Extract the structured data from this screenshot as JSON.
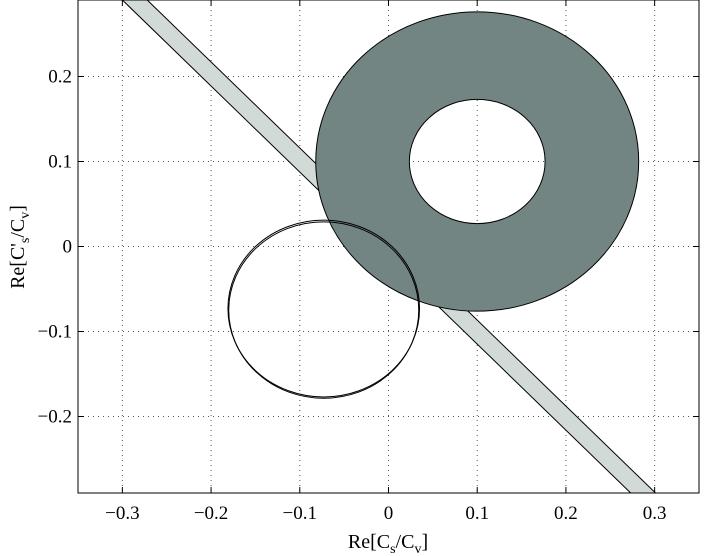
{
  "chart_data": {
    "type": "region-plot",
    "title": "",
    "xlabel": {
      "prefix": "Re[C",
      "sub1": "s",
      "mid": "/C",
      "sub2": "v",
      "suffix": "]"
    },
    "ylabel": {
      "prefix": "Re[C",
      "prime": "'",
      "sub1": "s",
      "mid": "/C",
      "sub2": "v",
      "suffix": "]"
    },
    "xlim": [
      -0.35,
      0.35
    ],
    "ylim": [
      -0.29,
      0.29
    ],
    "grid": true,
    "xticks": [
      {
        "value": -0.3,
        "label": "−0.3"
      },
      {
        "value": -0.2,
        "label": "−0.2"
      },
      {
        "value": -0.1,
        "label": "−0.1"
      },
      {
        "value": 0,
        "label": "0"
      },
      {
        "value": 0.1,
        "label": "0.1"
      },
      {
        "value": 0.2,
        "label": "0.2"
      },
      {
        "value": 0.3,
        "label": "0.3"
      }
    ],
    "yticks": [
      {
        "value": -0.2,
        "label": "−0.2"
      },
      {
        "value": -0.1,
        "label": "−0.1"
      },
      {
        "value": 0,
        "label": "0"
      },
      {
        "value": 0.1,
        "label": "0.1"
      },
      {
        "value": 0.2,
        "label": "0.2"
      }
    ],
    "regions": [
      {
        "kind": "band",
        "fill": "#d2dad8",
        "stroke": "#000000",
        "edge_a": [
          [
            -0.3,
            0.29
          ],
          [
            0.273,
            -0.29
          ]
        ],
        "edge_b": [
          [
            -0.272,
            0.29
          ],
          [
            0.301,
            -0.29
          ]
        ]
      },
      {
        "kind": "annulus",
        "fill": "#738583",
        "stroke": "#000000",
        "center": [
          0.1,
          0.1
        ],
        "outer_rx": 0.182,
        "outer_ry": 0.176,
        "inner_rx": 0.0765,
        "inner_ry": 0.073
      },
      {
        "kind": "ellipse-outline",
        "stroke": "#000000",
        "center": [
          -0.073,
          -0.073
        ],
        "rx": 0.108,
        "ry": 0.104
      }
    ]
  }
}
